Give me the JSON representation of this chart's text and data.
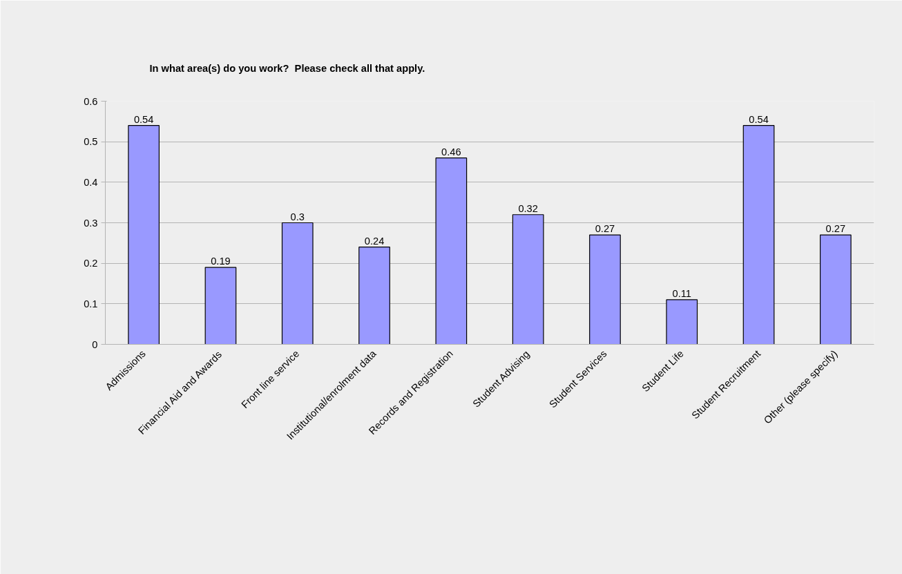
{
  "chart_data": {
    "type": "bar",
    "title": "In what area(s) do you work?  Please check all that apply.",
    "categories": [
      "Admissions",
      "Financial Aid and Awards",
      "Front line service",
      "Institutional/enrolment data",
      "Records and Registration",
      "Student Advising",
      "Student Services",
      "Student Life",
      "Student Recruitment",
      "Other (please specify)"
    ],
    "values": [
      0.54,
      0.19,
      0.3,
      0.24,
      0.46,
      0.32,
      0.27,
      0.11,
      0.54,
      0.27
    ],
    "color": "#9999ff",
    "ylim": [
      0,
      0.6
    ],
    "yticks": [
      {
        "value": 0,
        "label": "0"
      },
      0.1,
      0.2,
      0.3,
      0.4,
      0.5,
      0.6
    ],
    "grid": "y",
    "data_labels": true
  }
}
